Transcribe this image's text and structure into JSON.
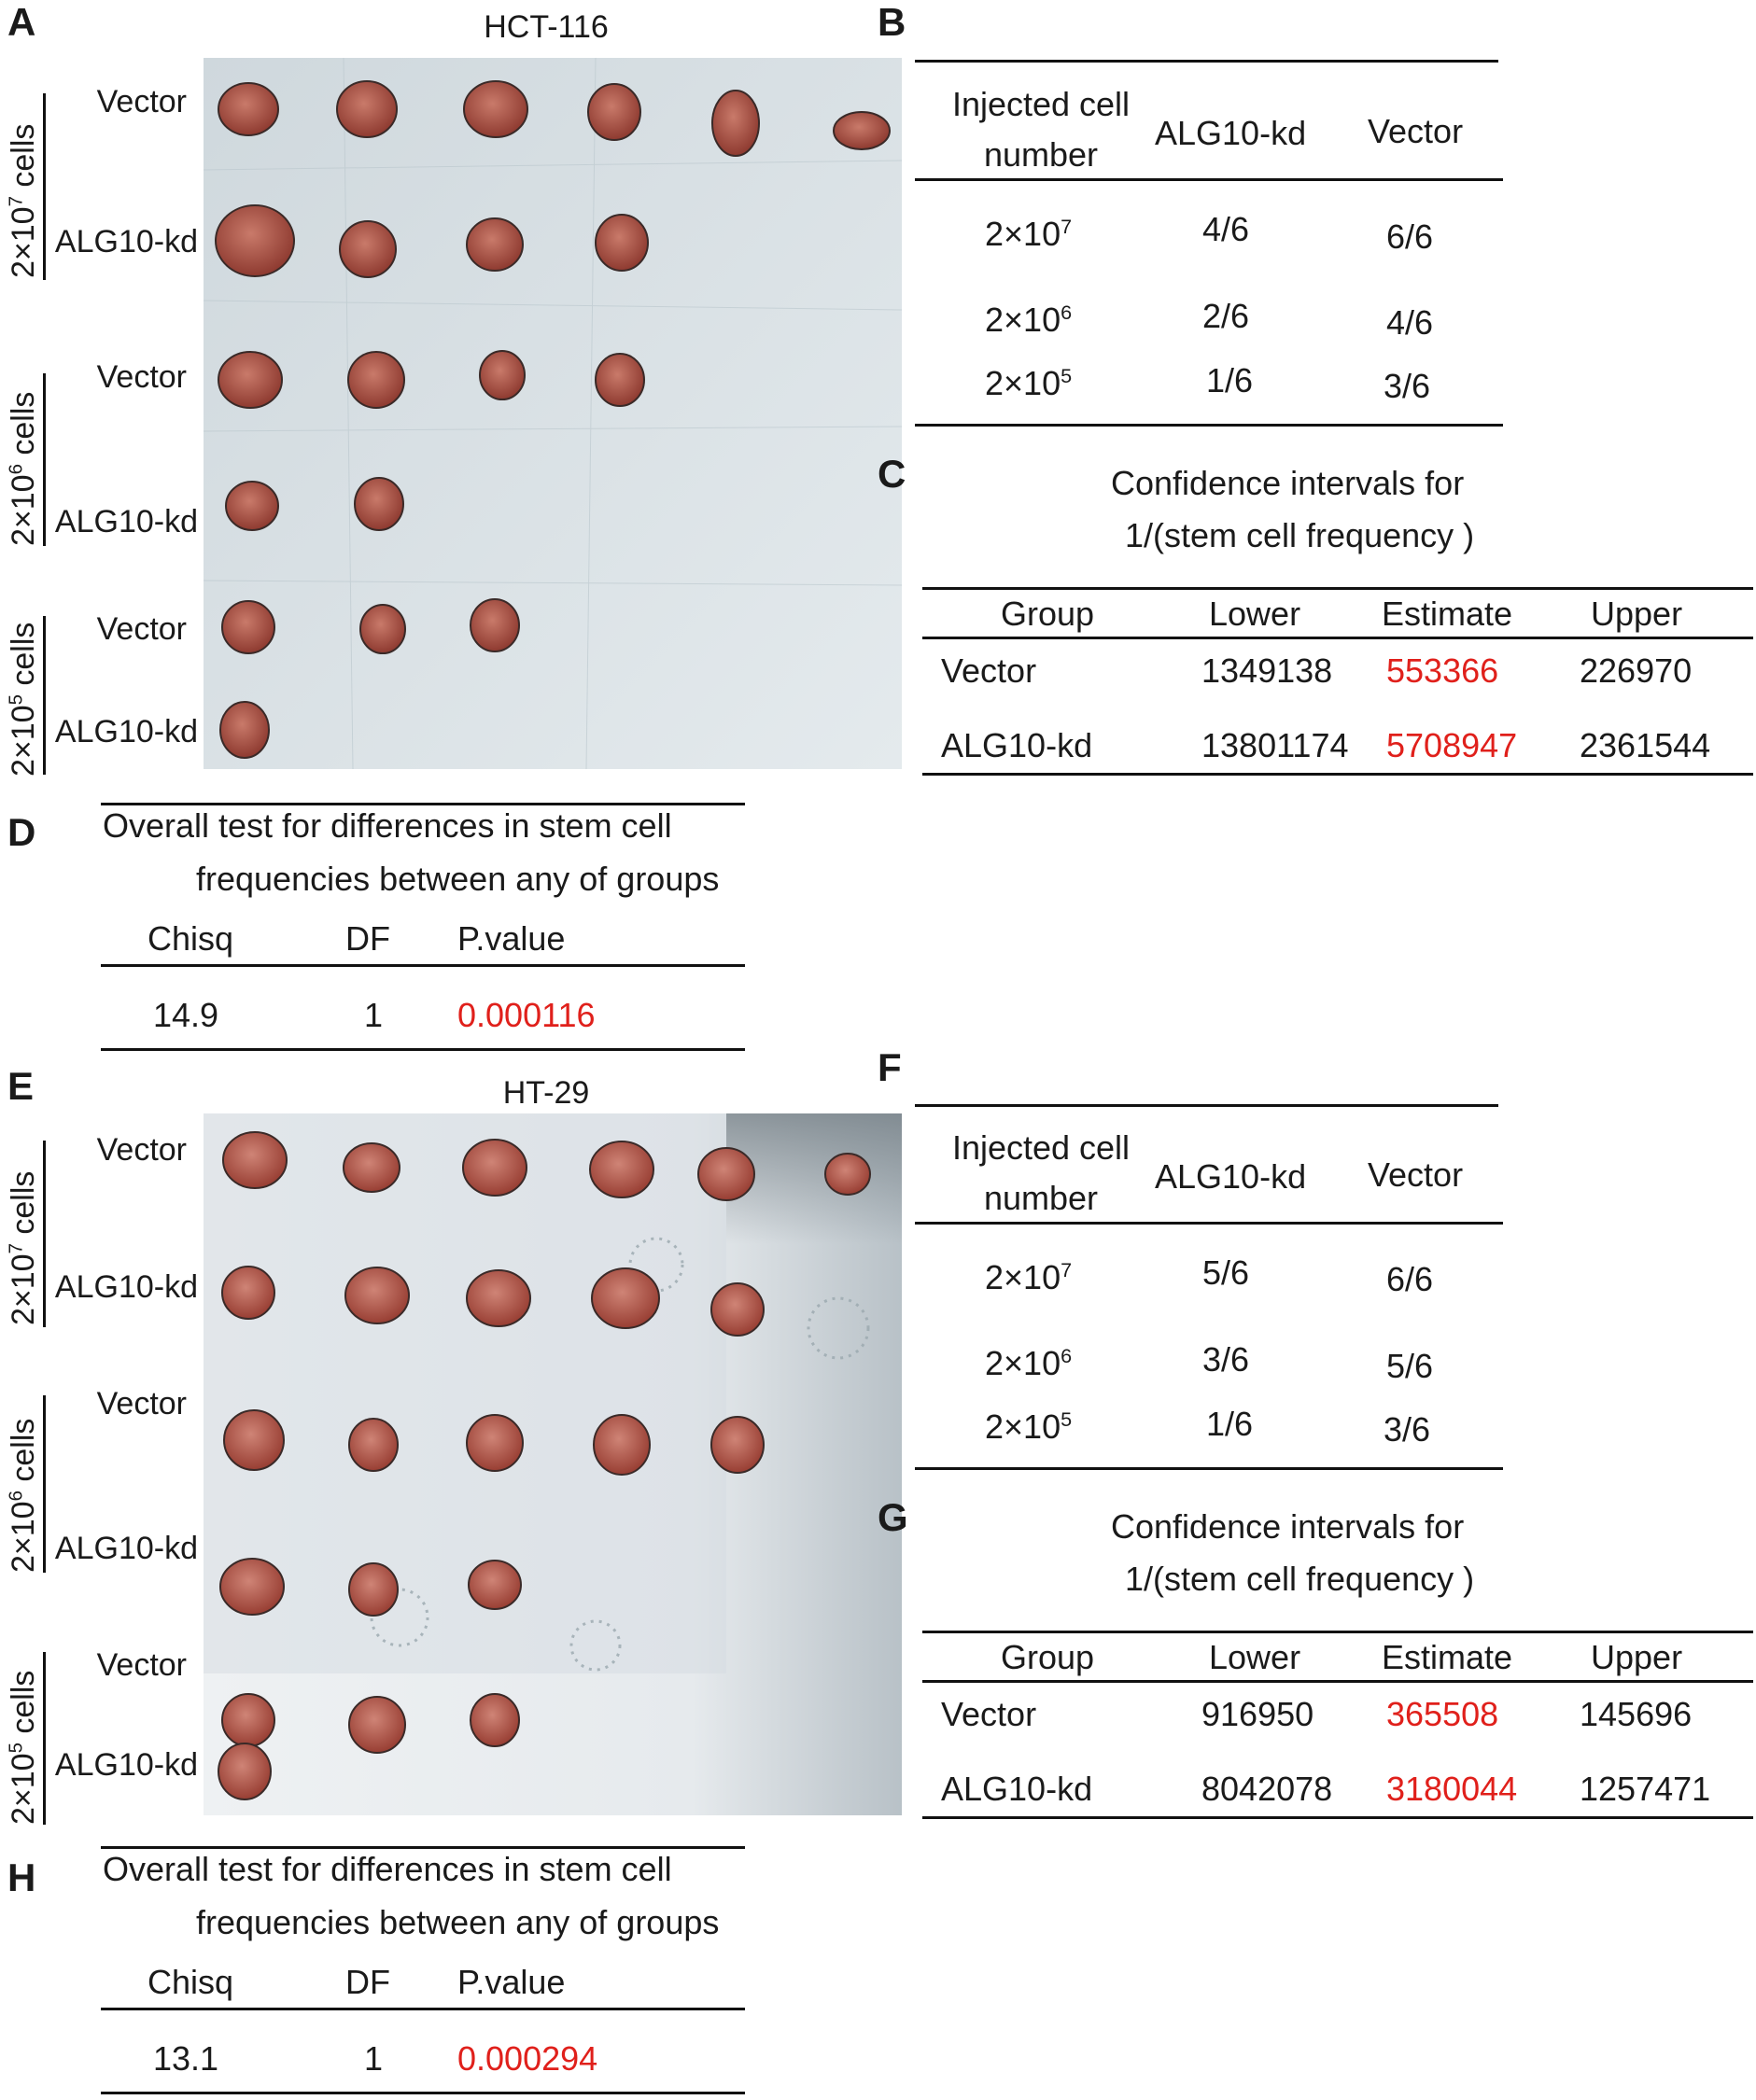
{
  "panels": {
    "A": {
      "letter": "A",
      "title": "HCT-116",
      "groups": [
        {
          "label": "2×10",
          "exp": "7",
          "suffix": " cells",
          "rows": [
            "Vector",
            "ALG10-kd"
          ]
        },
        {
          "label": "2×10",
          "exp": "6",
          "suffix": " cells",
          "rows": [
            "Vector",
            "ALG10-kd"
          ]
        },
        {
          "label": "2×10",
          "exp": "5",
          "suffix": " cells",
          "rows": [
            "Vector",
            "ALG10-kd"
          ]
        }
      ],
      "tumor_counts": {
        "vector_2e7": 6,
        "kd_2e7": 4,
        "vector_2e6": 4,
        "kd_2e6": 2,
        "vector_2e5": 3,
        "kd_2e5": 1
      }
    },
    "B": {
      "letter": "B",
      "headers": {
        "cell_line1": "Injected cell",
        "cell_line2": "number",
        "kd": "ALG10-kd",
        "vec": "Vector"
      },
      "rows": [
        {
          "base": "2×10",
          "exp": "7",
          "kd": "4/6",
          "vec": "6/6"
        },
        {
          "base": "2×10",
          "exp": "6",
          "kd": "2/6",
          "vec": "4/6"
        },
        {
          "base": "2×10",
          "exp": "5",
          "kd": "1/6",
          "vec": "3/6"
        }
      ]
    },
    "C": {
      "letter": "C",
      "title1": "Confidence intervals for",
      "title2": "1/(stem cell frequency )",
      "headers": {
        "group": "Group",
        "lower": "Lower",
        "estimate": "Estimate",
        "upper": "Upper"
      },
      "rows": [
        {
          "group": "Vector",
          "lower": "1349138",
          "estimate": "553366",
          "upper": "226970"
        },
        {
          "group": "ALG10-kd",
          "lower": "13801174",
          "estimate": "5708947",
          "upper": "2361544"
        }
      ]
    },
    "D": {
      "letter": "D",
      "title1": "Overall test for differences in stem cell",
      "title2": "frequencies between any of groups",
      "headers": {
        "chisq": "Chisq",
        "df": "DF",
        "p": "P.value"
      },
      "values": {
        "chisq": "14.9",
        "df": "1",
        "p": "0.000116"
      }
    },
    "E": {
      "letter": "E",
      "title": "HT-29",
      "groups": [
        {
          "label": "2×10",
          "exp": "7",
          "suffix": " cells",
          "rows": [
            "Vector",
            "ALG10-kd"
          ]
        },
        {
          "label": "2×10",
          "exp": "6",
          "suffix": " cells",
          "rows": [
            "Vector",
            "ALG10-kd"
          ]
        },
        {
          "label": "2×10",
          "exp": "5",
          "suffix": " cells",
          "rows": [
            "Vector",
            "ALG10-kd"
          ]
        }
      ],
      "tumor_counts": {
        "vector_2e7": 6,
        "kd_2e7": 5,
        "vector_2e6": 5,
        "kd_2e6": 3,
        "vector_2e5": 3,
        "kd_2e5": 1
      }
    },
    "F": {
      "letter": "F",
      "headers": {
        "cell_line1": "Injected cell",
        "cell_line2": "number",
        "kd": "ALG10-kd",
        "vec": "Vector"
      },
      "rows": [
        {
          "base": "2×10",
          "exp": "7",
          "kd": "5/6",
          "vec": "6/6"
        },
        {
          "base": "2×10",
          "exp": "6",
          "kd": "3/6",
          "vec": "5/6"
        },
        {
          "base": "2×10",
          "exp": "5",
          "kd": "1/6",
          "vec": "3/6"
        }
      ]
    },
    "G": {
      "letter": "G",
      "title1": "Confidence intervals for",
      "title2": "1/(stem cell frequency )",
      "headers": {
        "group": "Group",
        "lower": "Lower",
        "estimate": "Estimate",
        "upper": "Upper"
      },
      "rows": [
        {
          "group": "Vector",
          "lower": "916950",
          "estimate": "365508",
          "upper": "145696"
        },
        {
          "group": "ALG10-kd",
          "lower": "8042078",
          "estimate": "3180044",
          "upper": "1257471"
        }
      ]
    },
    "H": {
      "letter": "H",
      "title1": "Overall test for differences in stem cell",
      "title2": "frequencies between any of groups",
      "headers": {
        "chisq": "Chisq",
        "df": "DF",
        "p": "P.value"
      },
      "values": {
        "chisq": "13.1",
        "df": "1",
        "p": "0.000294"
      }
    }
  },
  "colors": {
    "highlight": "#e0201b",
    "tumor": "#b5564a",
    "background_photo_top": "#d9e0e4",
    "background_photo_bottom": "#e8edf0"
  }
}
